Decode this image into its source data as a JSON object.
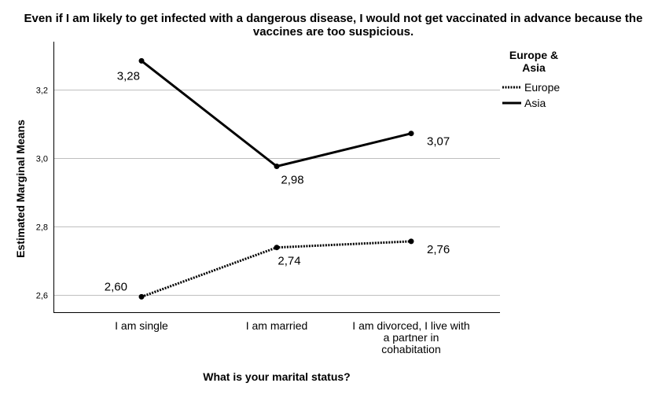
{
  "chart_data": {
    "type": "line",
    "title_lines": [
      "Even if I am likely to get infected with a dangerous disease, I would not get vaccinated in advance because the",
      "vaccines are too suspicious."
    ],
    "xlabel": "What is your marital status?",
    "ylabel": "Estimated Marginal Means",
    "categories": [
      [
        "I am single"
      ],
      [
        "I am married"
      ],
      [
        "I am divorced, I live with",
        "a partner in",
        "cohabitation"
      ]
    ],
    "ylim": [
      2.55,
      3.34
    ],
    "yticks": [
      2.6,
      2.8,
      3.0,
      3.2
    ],
    "ytick_labels": [
      "2,6",
      "2,8",
      "3,0",
      "3,2"
    ],
    "grid": "horizontal",
    "legend": {
      "title_lines": [
        "Europe &",
        "Asia"
      ],
      "position": "top-right"
    },
    "series": [
      {
        "name": "Europe",
        "style": "dotted",
        "color": "#000000",
        "values": [
          2.595,
          2.739,
          2.757
        ],
        "labels": [
          "2,60",
          "2,74",
          "2,76"
        ]
      },
      {
        "name": "Asia",
        "style": "solid",
        "color": "#000000",
        "values": [
          3.284,
          2.976,
          3.072
        ],
        "labels": [
          "3,28",
          "2,98",
          "3,07"
        ]
      }
    ]
  }
}
